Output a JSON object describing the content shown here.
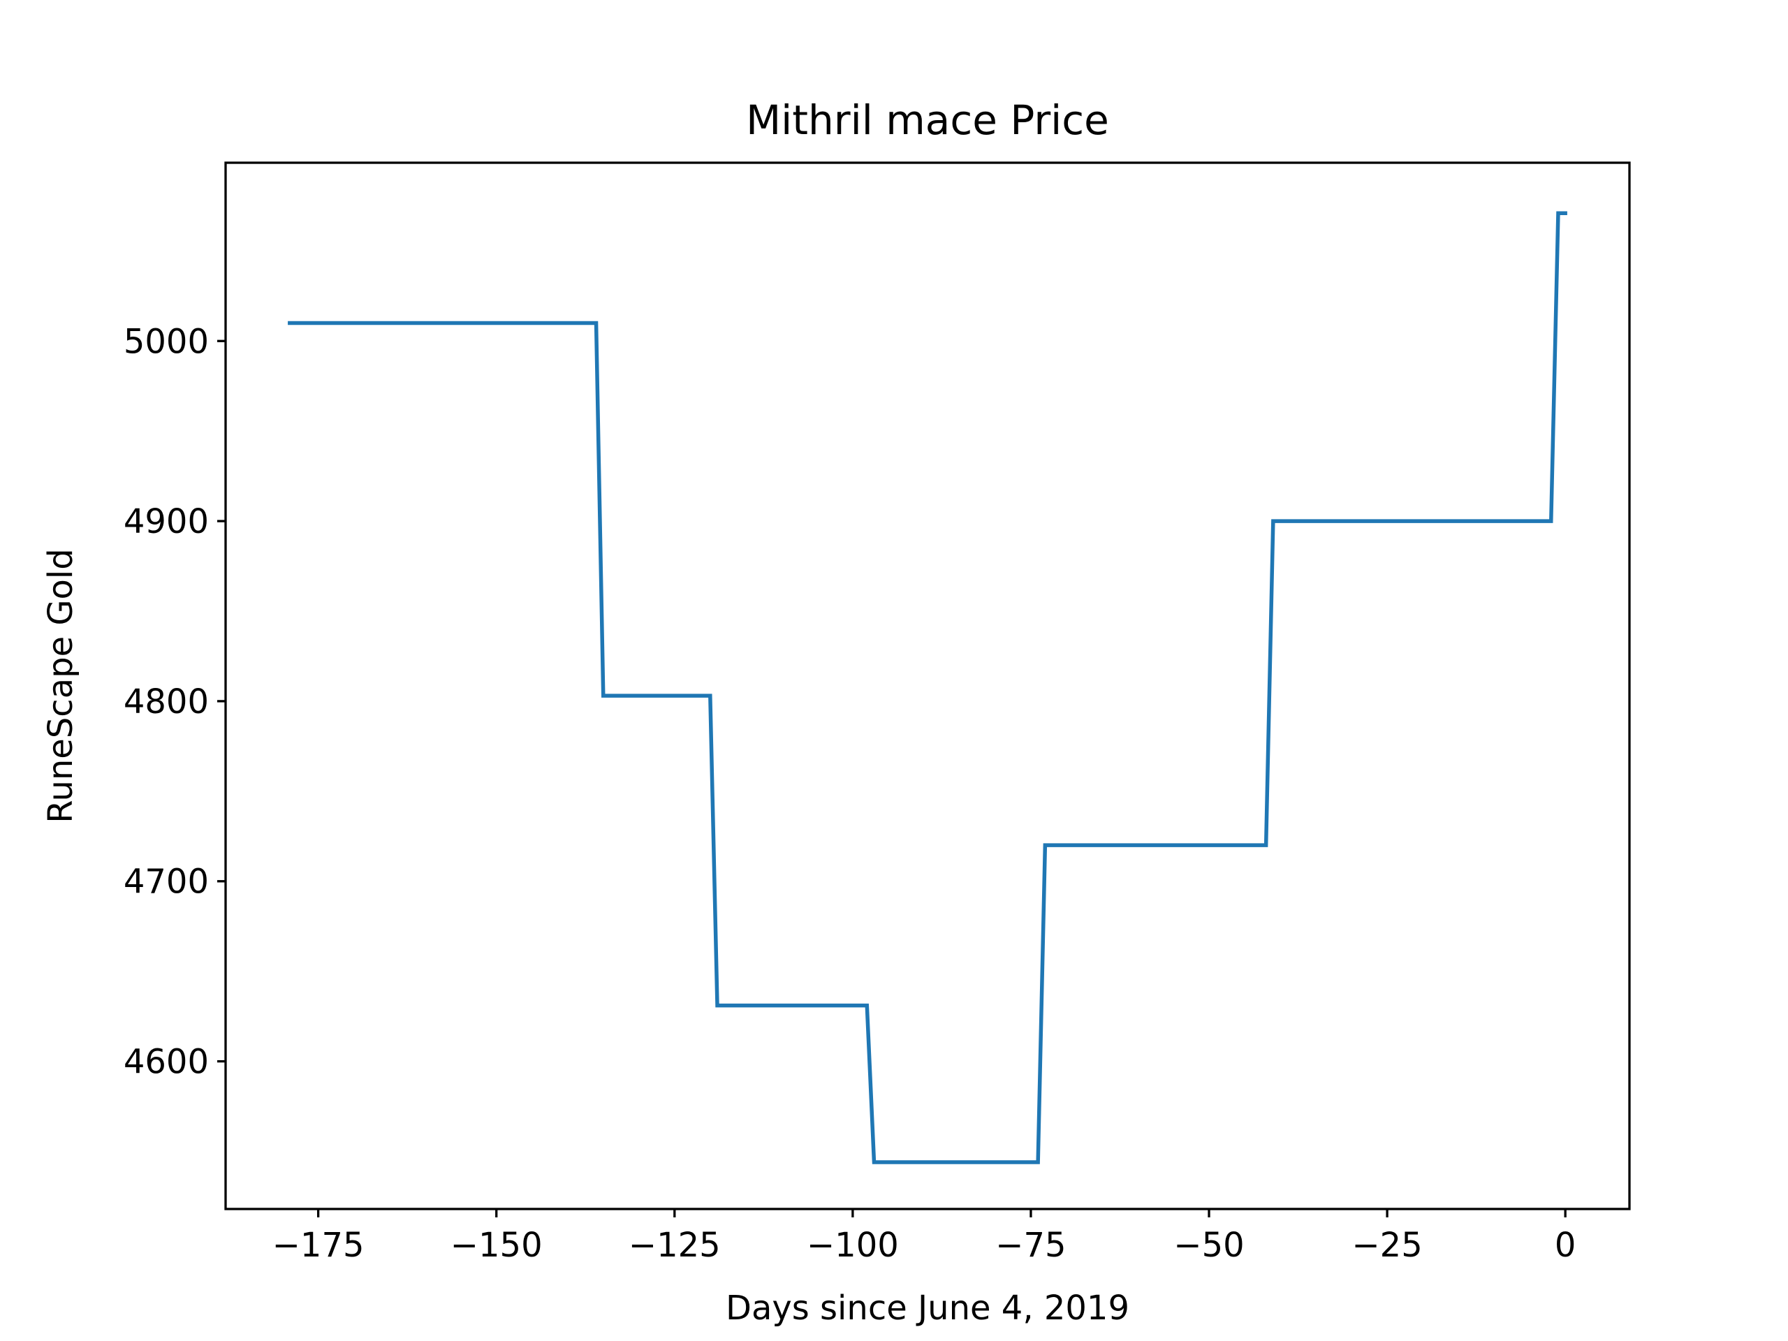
{
  "chart_data": {
    "type": "line",
    "title": "Mithril mace Price",
    "xlabel": "Days since June 4, 2019",
    "ylabel": "RuneScape Gold",
    "xlim": [
      -188,
      9
    ],
    "ylim": [
      4518,
      5099
    ],
    "xticks": [
      -175,
      -150,
      -125,
      -100,
      -75,
      -50,
      -25,
      0
    ],
    "xtick_labels": [
      "−175",
      "−150",
      "−125",
      "−100",
      "−75",
      "−50",
      "−25",
      "0"
    ],
    "yticks": [
      4600,
      4700,
      4800,
      4900,
      5000
    ],
    "ytick_labels": [
      "4600",
      "4700",
      "4800",
      "4900",
      "5000"
    ],
    "grid": false,
    "series": [
      {
        "color": "#1f77b4",
        "x": [
          -179,
          -136,
          -135,
          -120,
          -119,
          -98,
          -97,
          -74,
          -73,
          -42,
          -41,
          -2,
          -1,
          0
        ],
        "y": [
          5010,
          5010,
          4803,
          4803,
          4631,
          4631,
          4544,
          4544,
          4720,
          4720,
          4900,
          4900,
          5071,
          5071
        ]
      }
    ]
  }
}
